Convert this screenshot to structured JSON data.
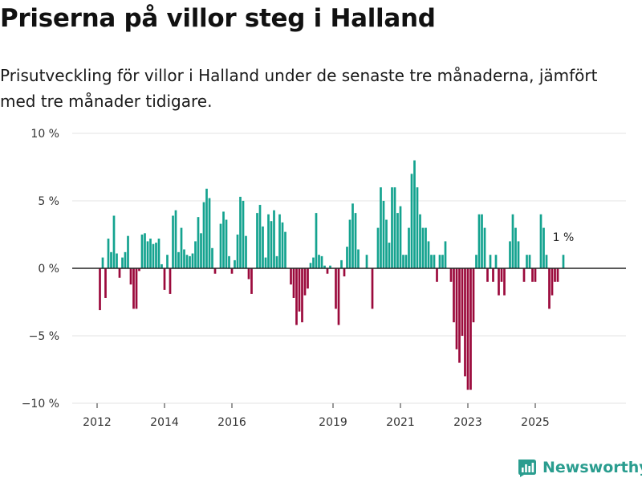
{
  "title": "Priserna på villor steg i Halland",
  "subtitle": "Prisutveckling för villor i Halland under de senaste tre månaderna, jämfört med tre månader tidigare.",
  "brand": {
    "name": "Newsworthy",
    "icon": "newsworthy-logo-icon"
  },
  "colors": {
    "positive": "#14a38f",
    "negative": "#9b0a3c",
    "grid": "#e3e3e3",
    "zero": "#222222",
    "brand": "#2a9d8f"
  },
  "chart_data": {
    "type": "bar",
    "title": "Priserna på villor steg i Halland",
    "xlabel": "",
    "ylabel": "",
    "ylim": [
      -10,
      10
    ],
    "yticks": [
      {
        "value": 10,
        "label": "10 %"
      },
      {
        "value": 5,
        "label": "5 %"
      },
      {
        "value": 0,
        "label": "0 %"
      },
      {
        "value": -5,
        "label": "−5 %"
      },
      {
        "value": -10,
        "label": "−10 %"
      }
    ],
    "start_year": 2012,
    "start_month": 1,
    "xticks": [
      {
        "year": 2012,
        "label": "2012"
      },
      {
        "year": 2014,
        "label": "2014"
      },
      {
        "year": 2016,
        "label": "2016"
      },
      {
        "year": 2019,
        "label": "2019"
      },
      {
        "year": 2021,
        "label": "2021"
      },
      {
        "year": 2023,
        "label": "2023"
      },
      {
        "year": 2025,
        "label": "2025"
      }
    ],
    "last_label": "1 %",
    "values": [
      0,
      -3.1,
      0.8,
      -2.2,
      2.2,
      1.2,
      3.9,
      1.1,
      -0.7,
      0.8,
      1.2,
      2.4,
      -1.2,
      -3.0,
      -3.0,
      -0.2,
      2.5,
      2.6,
      2.0,
      2.2,
      1.8,
      1.9,
      2.2,
      0.3,
      -1.6,
      1.0,
      -1.9,
      3.9,
      4.3,
      1.2,
      3.0,
      1.4,
      1.0,
      0.9,
      1.1,
      2.0,
      3.8,
      2.6,
      4.9,
      5.9,
      5.2,
      1.5,
      -0.4,
      0,
      3.3,
      4.2,
      3.6,
      0.9,
      -0.4,
      0.6,
      2.5,
      5.3,
      5.0,
      2.4,
      -0.8,
      -1.9,
      0,
      4.1,
      4.7,
      3.1,
      0.8,
      4.0,
      3.5,
      4.3,
      0.9,
      4.0,
      3.4,
      2.7,
      0,
      -1.2,
      -2.2,
      -4.2,
      -3.2,
      -4.0,
      -2.0,
      -1.5,
      0.4,
      0.8,
      4.1,
      1.0,
      0.9,
      0.2,
      -0.4,
      0.2,
      0,
      -3.0,
      -4.2,
      0.6,
      -0.6,
      1.6,
      3.6,
      4.8,
      4.1,
      1.4,
      0,
      0,
      1.0,
      0,
      -3.0,
      0,
      3.0,
      6.0,
      5.0,
      3.6,
      1.9,
      6.0,
      6.0,
      4.1,
      4.6,
      1.0,
      1.0,
      3.0,
      7.0,
      8.0,
      6.0,
      4.0,
      3.0,
      3.0,
      2.0,
      1.0,
      1.0,
      -1.0,
      1.0,
      1.0,
      2.0,
      0,
      -1.0,
      -4.0,
      -6.0,
      -7.0,
      -5.0,
      -8.0,
      -9.0,
      -9.0,
      -4.0,
      1.0,
      4.0,
      4.0,
      3.0,
      -1.0,
      1.0,
      -1.0,
      1.0,
      -2.0,
      -1.0,
      -2.0,
      0,
      2.0,
      4.0,
      3.0,
      2.0,
      0,
      -1.0,
      1.0,
      1.0,
      -1.0,
      -1.0,
      0,
      4.0,
      3.0,
      1.0,
      -3.0,
      -2.0,
      -1.0,
      -1.0,
      0,
      1.0
    ]
  }
}
